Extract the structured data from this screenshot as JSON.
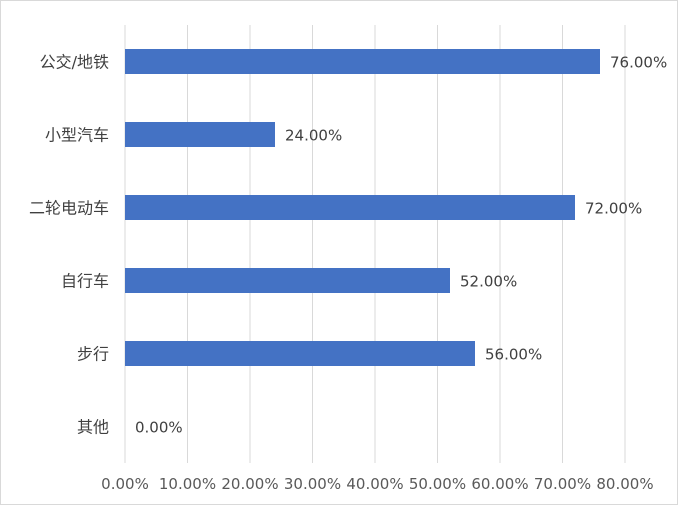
{
  "chart_data": {
    "type": "bar",
    "orientation": "horizontal",
    "categories": [
      "公交/地铁",
      "小型汽车",
      "二轮电动车",
      "自行车",
      "步行",
      "其他"
    ],
    "values": [
      76.0,
      24.0,
      72.0,
      52.0,
      56.0,
      0.0
    ],
    "data_labels": [
      "76.00%",
      "24.00%",
      "72.00%",
      "52.00%",
      "56.00%",
      "0.00%"
    ],
    "xlim": [
      0,
      80
    ],
    "x_ticks": [
      0,
      10,
      20,
      30,
      40,
      50,
      60,
      70,
      80
    ],
    "x_tick_labels": [
      "0.00%",
      "10.00%",
      "20.00%",
      "30.00%",
      "40.00%",
      "50.00%",
      "60.00%",
      "70.00%",
      "80.00%"
    ],
    "title": "",
    "xlabel": "",
    "ylabel": "",
    "grid": "vertical",
    "legend": "none",
    "bar_color": "#4472c4",
    "gridline_color": "#d9d9d9"
  }
}
